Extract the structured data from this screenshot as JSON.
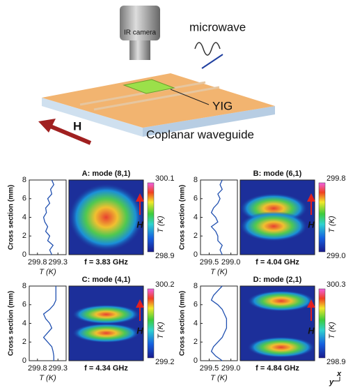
{
  "schematic": {
    "camera": "IR camera",
    "microwave": "microwave",
    "sample": "YIG",
    "field": "H",
    "waveguide": "Coplanar waveguide"
  },
  "panels": [
    {
      "title": "A: mode (8,1)",
      "frequency_label": "f = 3.83 GHz",
      "colorbar": {
        "max": "300.1",
        "min": "298.9",
        "label": "T (K)",
        "field": "H"
      },
      "profile": {
        "y_label": "Cross section (mm)",
        "x_label": "T (K)",
        "ylim": [
          0,
          8
        ],
        "yticks": [
          0,
          2,
          4,
          6,
          8
        ],
        "xlim": [
          300.0,
          299.1
        ],
        "xticks": [
          299.8,
          299.3
        ],
        "y": [
          0,
          0.5,
          1,
          1.5,
          2,
          2.5,
          3,
          3.5,
          4,
          4.5,
          5,
          5.5,
          6,
          6.5,
          7,
          7.5,
          8
        ],
        "T": [
          299.45,
          299.5,
          299.42,
          299.55,
          299.5,
          299.6,
          299.55,
          299.62,
          299.65,
          299.58,
          299.6,
          299.5,
          299.55,
          299.45,
          299.48,
          299.4,
          299.45
        ]
      }
    },
    {
      "title": "B: mode (6,1)",
      "frequency_label": "f = 4.04 GHz",
      "colorbar": {
        "max": "299.8",
        "min": "299.0",
        "label": "T (K)",
        "field": "H"
      },
      "profile": {
        "y_label": "Cross section (mm)",
        "x_label": "T (K)",
        "ylim": [
          0,
          8
        ],
        "yticks": [
          0,
          2,
          4,
          6,
          8
        ],
        "xlim": [
          299.7,
          298.85
        ],
        "xticks": [
          299.5,
          {
            "value": 299.0,
            "label": "299.0"
          }
        ],
        "y": [
          0,
          0.5,
          1,
          1.5,
          2,
          2.5,
          3,
          3.5,
          4,
          4.5,
          5,
          5.5,
          6,
          6.5,
          7,
          7.5,
          8
        ],
        "T": [
          299.2,
          299.25,
          299.2,
          299.3,
          299.3,
          299.35,
          299.45,
          299.3,
          299.35,
          299.45,
          299.4,
          299.3,
          299.25,
          299.3,
          299.2,
          299.25,
          299.2
        ]
      }
    },
    {
      "title": "C: mode (4,1)",
      "frequency_label": "f = 4.34 GHz",
      "colorbar": {
        "max": "300.2",
        "min": "299.2",
        "label": "T (K)",
        "field": "H"
      },
      "profile": {
        "y_label": "Cross section (mm)",
        "x_label": "T (K)",
        "ylim": [
          0,
          8
        ],
        "yticks": [
          0,
          2,
          4,
          6,
          8
        ],
        "xlim": [
          300.0,
          299.1
        ],
        "xticks": [
          299.8,
          299.3
        ],
        "y": [
          0,
          0.5,
          1,
          1.5,
          2,
          2.5,
          3,
          3.5,
          4,
          4.5,
          5,
          5.5,
          6,
          6.5,
          7,
          7.5,
          8
        ],
        "T": [
          299.4,
          299.4,
          299.42,
          299.45,
          299.55,
          299.65,
          299.55,
          299.45,
          299.5,
          299.6,
          299.65,
          299.5,
          299.4,
          299.35,
          299.35,
          299.35,
          299.35
        ]
      }
    },
    {
      "title": "D: mode (2,1)",
      "frequency_label": "f = 4.84 GHz",
      "colorbar": {
        "max": "300.3",
        "min": "298.9",
        "label": "T (K)",
        "field": "H"
      },
      "profile": {
        "y_label": "Cross section (mm)",
        "x_label": "T (K)",
        "ylim": [
          0,
          8
        ],
        "yticks": [
          0,
          2,
          4,
          6,
          8
        ],
        "xlim": [
          299.7,
          298.85
        ],
        "xticks": [
          299.5,
          {
            "value": 299.0,
            "label": "299.0"
          }
        ],
        "y": [
          0,
          0.5,
          1,
          1.5,
          2,
          2.5,
          3,
          3.5,
          4,
          4.5,
          5,
          5.5,
          6,
          6.5,
          7,
          7.5,
          8
        ],
        "T": [
          299.2,
          299.35,
          299.45,
          299.4,
          299.3,
          299.2,
          299.15,
          299.1,
          299.1,
          299.1,
          299.15,
          299.2,
          299.3,
          299.45,
          299.4,
          299.3,
          299.2
        ]
      }
    }
  ],
  "axes": {
    "x": "x",
    "y": "y"
  }
}
